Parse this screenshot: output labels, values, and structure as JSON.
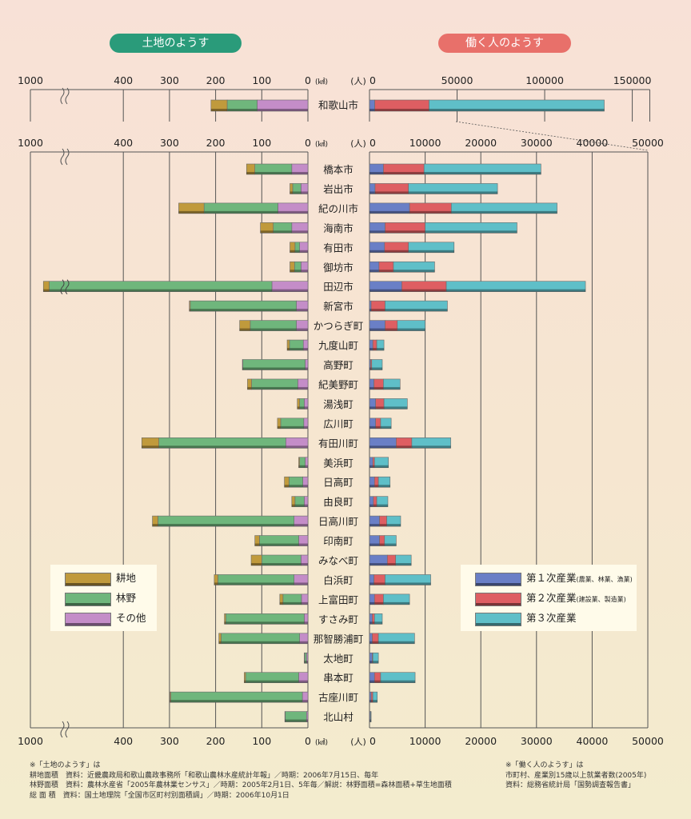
{
  "header": {
    "land_title": "土地のようす",
    "work_title": "働く人のようす"
  },
  "axis": {
    "land_ticks": [
      "1000",
      "400",
      "300",
      "200",
      "100",
      "0"
    ],
    "land_unit": "(㎢)",
    "work_unit": "(人)",
    "work_top_ticks": [
      "0",
      "50000",
      "100000",
      "150000"
    ],
    "work_ticks": [
      "0",
      "10000",
      "20000",
      "30000",
      "40000",
      "50000"
    ]
  },
  "legend_land": [
    {
      "label": "耕地",
      "color": "#c09a3c"
    },
    {
      "label": "林野",
      "color": "#6fb67c"
    },
    {
      "label": "その他",
      "color": "#c48dc8"
    }
  ],
  "legend_work": [
    {
      "label": "第１次産業",
      "note": "(農業、林業、漁業)",
      "color": "#6a7fc6"
    },
    {
      "label": "第２次産業",
      "note": "(建設業、製造業)",
      "color": "#de5e62"
    },
    {
      "label": "第３次産業",
      "note": "",
      "color": "#5fbfc8"
    }
  ],
  "chart_data": {
    "type": "bar",
    "top_panel": {
      "category": "和歌山市",
      "land": {
        "耕地": 35,
        "林野": 65,
        "その他": 110
      },
      "workers": {
        "第１次産業": 3000,
        "第２次産業": 31000,
        "第３次産業": 100000
      }
    },
    "land_xlim": [
      0,
      1000
    ],
    "workers_xlim": [
      0,
      50000
    ],
    "workers_top_xlim": [
      0,
      160000
    ],
    "categories": [
      "橋本市",
      "岩出市",
      "紀の川市",
      "海南市",
      "有田市",
      "御坊市",
      "田辺市",
      "新宮市",
      "かつらぎ町",
      "九度山町",
      "高野町",
      "紀美野町",
      "湯浅町",
      "広川町",
      "有田川町",
      "美浜町",
      "日高町",
      "由良町",
      "日高川町",
      "印南町",
      "みなべ町",
      "白浜町",
      "上富田町",
      "すさみ町",
      "那智勝浦町",
      "太地町",
      "串本町",
      "古座川町",
      "北山村"
    ],
    "land_series": [
      {
        "name": "耕地",
        "values": [
          18,
          6,
          55,
          28,
          11,
          10,
          38,
          2,
          23,
          5,
          1,
          9,
          5,
          7,
          37,
          2,
          10,
          7,
          12,
          10,
          23,
          8,
          7,
          3,
          5,
          1,
          3,
          2,
          1
        ]
      },
      {
        "name": "林野",
        "values": [
          80,
          18,
          160,
          40,
          10,
          14,
          800,
          230,
          100,
          30,
          135,
          100,
          10,
          50,
          275,
          12,
          30,
          20,
          295,
          85,
          85,
          165,
          40,
          170,
          170,
          4,
          115,
          285,
          46
        ]
      },
      {
        "name": "その他",
        "values": [
          35,
          15,
          65,
          35,
          18,
          15,
          78,
          25,
          25,
          10,
          6,
          22,
          8,
          9,
          48,
          6,
          11,
          8,
          30,
          20,
          15,
          30,
          14,
          8,
          18,
          3,
          20,
          12,
          3
        ]
      }
    ],
    "worker_series": [
      {
        "name": "第１次産業",
        "values": [
          2500,
          1000,
          7200,
          2800,
          2700,
          1700,
          5800,
          300,
          2800,
          600,
          200,
          800,
          1100,
          1100,
          4800,
          600,
          900,
          700,
          1800,
          1800,
          3200,
          800,
          900,
          500,
          500,
          500,
          900,
          300,
          150
        ]
      },
      {
        "name": "第２次産業",
        "values": [
          7300,
          6000,
          7500,
          7200,
          4300,
          2600,
          8000,
          2500,
          2200,
          700,
          200,
          1700,
          1500,
          900,
          2800,
          300,
          700,
          600,
          1300,
          900,
          1500,
          2000,
          1600,
          400,
          1100,
          100,
          1100,
          300,
          50
        ]
      },
      {
        "name": "第３次産業",
        "values": [
          21000,
          16000,
          19000,
          16500,
          8200,
          7400,
          25000,
          11200,
          5000,
          1300,
          1900,
          3000,
          4200,
          1900,
          7000,
          2500,
          2100,
          2000,
          2500,
          2100,
          2800,
          8200,
          4700,
          1400,
          6500,
          1000,
          6200,
          800,
          100
        ]
      }
    ]
  },
  "notes_left": [
    "※「土地のようす」は",
    "耕地面積　資料：近畿農政局和歌山農政事務所「和歌山農林水産統計年報」／時期：2006年7月15日、毎年",
    "林野面積　資料：農林水産省「2005年農林業センサス」／時期：2005年2月1日、5年毎／解説：林野面積=森林面積+草生地面積",
    "総 面 積　資料：国土地理院「全国市区町村別面積調」／時期：2006年10月1日"
  ],
  "notes_right": [
    "※「働く人のようす」は",
    "市町村、産業別15歳以上就業者数(2005年)",
    "資料：総務省統計局「国勢調査報告書」"
  ]
}
